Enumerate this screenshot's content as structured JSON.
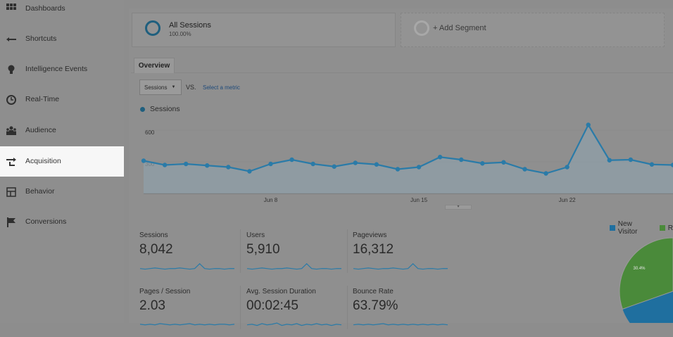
{
  "sidebar": {
    "items": [
      {
        "label": "Dashboards",
        "icon": "grid-icon"
      },
      {
        "label": "Shortcuts",
        "icon": "arrow-left-icon"
      },
      {
        "label": "Intelligence Events",
        "icon": "lightbulb-icon"
      },
      {
        "label": "Real-Time",
        "icon": "clock-icon"
      },
      {
        "label": "Audience",
        "icon": "users-icon"
      },
      {
        "label": "Acquisition",
        "icon": "acquisition-arrows-icon",
        "active": true
      },
      {
        "label": "Behavior",
        "icon": "layout-icon"
      },
      {
        "label": "Conversions",
        "icon": "flag-icon"
      }
    ]
  },
  "segments": {
    "all": {
      "title": "All Sessions",
      "subtitle": "100.00%"
    },
    "add_label": "+ Add Segment"
  },
  "tabs": {
    "overview": "Overview"
  },
  "controls": {
    "metric": "Sessions",
    "vs": "VS.",
    "select_metric": "Select a metric"
  },
  "chart_data": {
    "type": "line",
    "legend": "Sessions",
    "y_ticks": [
      "600",
      "300"
    ],
    "x_ticks": [
      "Jun 8",
      "Jun 15",
      "Jun 22"
    ],
    "values": [
      310,
      270,
      280,
      265,
      250,
      210,
      280,
      320,
      280,
      255,
      290,
      275,
      230,
      250,
      345,
      320,
      285,
      295,
      230,
      190,
      250,
      650,
      315,
      320,
      275,
      270
    ],
    "ylim": [
      0,
      700
    ],
    "color": "#2a7ba8"
  },
  "metrics": [
    {
      "label": "Sessions",
      "value": "8,042",
      "spark": [
        5,
        4,
        5,
        6,
        5,
        4,
        5,
        5,
        6,
        5,
        4,
        5,
        13,
        5,
        4,
        5,
        5,
        4,
        5,
        5
      ]
    },
    {
      "label": "Users",
      "value": "5,910",
      "spark": [
        5,
        4,
        5,
        6,
        5,
        4,
        5,
        5,
        6,
        5,
        4,
        5,
        13,
        5,
        4,
        5,
        5,
        4,
        5,
        5
      ]
    },
    {
      "label": "Pageviews",
      "value": "16,312",
      "spark": [
        5,
        4,
        5,
        6,
        5,
        4,
        5,
        5,
        6,
        5,
        4,
        5,
        13,
        5,
        4,
        5,
        5,
        4,
        5,
        5
      ]
    },
    {
      "label": "Pages / Session",
      "value": "2.03",
      "spark": [
        6,
        5,
        6,
        5,
        7,
        6,
        5,
        6,
        5,
        6,
        7,
        5,
        6,
        5,
        6,
        5,
        6,
        6,
        5,
        6
      ]
    },
    {
      "label": "Avg. Session Duration",
      "value": "00:02:45",
      "spark": [
        5,
        6,
        4,
        7,
        5,
        6,
        8,
        4,
        6,
        5,
        7,
        4,
        6,
        5,
        7,
        5,
        6,
        4,
        6,
        5
      ]
    },
    {
      "label": "Bounce Rate",
      "value": "63.79%",
      "spark": [
        5,
        6,
        5,
        6,
        5,
        6,
        7,
        5,
        6,
        5,
        6,
        5,
        6,
        5,
        6,
        5,
        6,
        5,
        6,
        5
      ]
    }
  ],
  "pie": {
    "legend": [
      {
        "label": "New Visitor",
        "color": "#1f6f9f"
      },
      {
        "label": "R",
        "color": "#4a8a3a"
      }
    ],
    "slice_label": "30.4%",
    "returning_share": 0.304
  }
}
